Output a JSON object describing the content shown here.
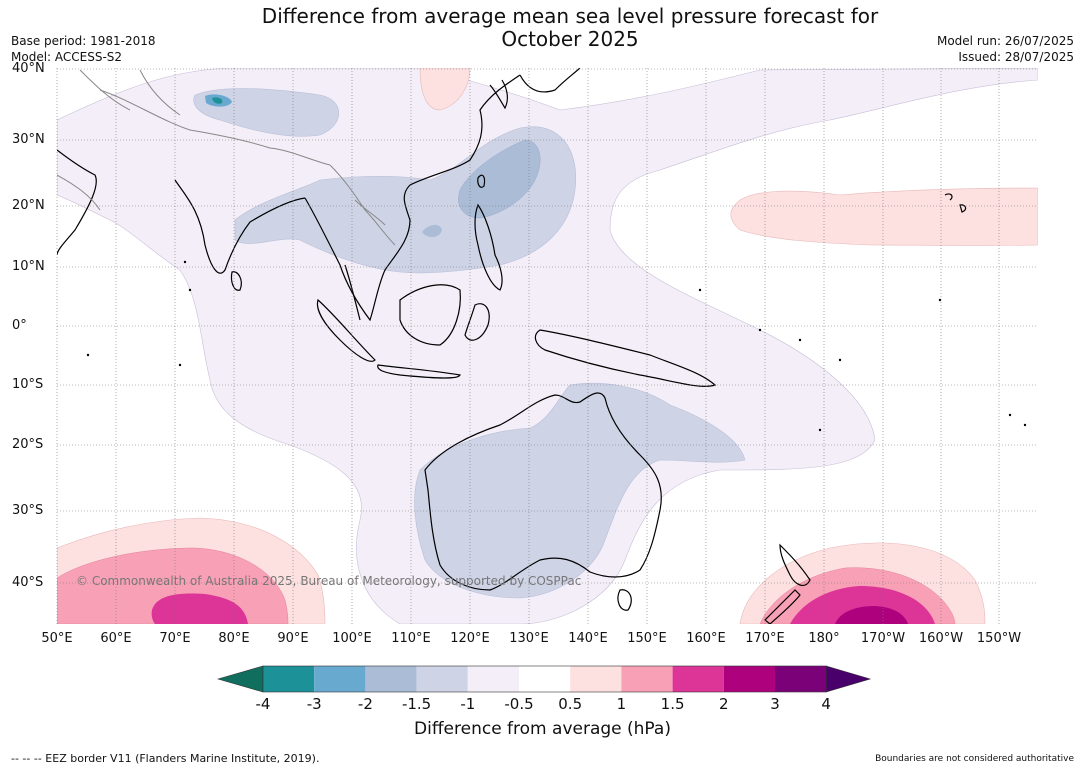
{
  "header": {
    "title": "Difference from average mean sea level pressure forecast for October 2025",
    "base_period": "Base period: 1981-2018",
    "model": "Model: ACCESS-S2",
    "model_run": "Model run: 26/07/2025",
    "issued": "Issued: 28/07/2025"
  },
  "map": {
    "lat_labels": [
      "40°N",
      "30°N",
      "20°N",
      "10°N",
      "0°",
      "10°S",
      "20°S",
      "30°S",
      "40°S"
    ],
    "lon_labels": [
      "50°E",
      "60°E",
      "70°E",
      "80°E",
      "90°E",
      "100°E",
      "110°E",
      "120°E",
      "130°E",
      "140°E",
      "150°E",
      "160°E",
      "170°E",
      "180°",
      "170°W",
      "160°W",
      "150°W"
    ],
    "copyright": "© Commonwealth of Australia 2025, Bureau of Meteorology, supported by COSPPac",
    "anomaly_regions": [
      {
        "name": "west-pacific-low",
        "anomaly_hpa": -1.5,
        "color": "#cfd3e6"
      },
      {
        "name": "philippine-sea-low",
        "anomaly_hpa": -1.5,
        "color": "#aabcd6"
      },
      {
        "name": "australia-low",
        "anomaly_hpa": -1.5,
        "color": "#cfd3e6"
      },
      {
        "name": "tibet-low",
        "anomaly_hpa": -3,
        "color": "#6aa9cf"
      },
      {
        "name": "north-pacific-high",
        "anomaly_hpa": 1,
        "color": "#fde0e0"
      },
      {
        "name": "southern-indian-ocean-high",
        "anomaly_hpa": 2,
        "color": "#dd3497"
      },
      {
        "name": "tasman-high",
        "anomaly_hpa": 3,
        "color": "#ae017e"
      }
    ]
  },
  "colorbar": {
    "title": "Difference from average (hPa)",
    "ticks": [
      "-4",
      "-3",
      "-2",
      "-1.5",
      "-1",
      "-0.5",
      "0.5",
      "1",
      "1.5",
      "2",
      "3",
      "4"
    ],
    "colors": [
      "#0f6e5e",
      "#1d9198",
      "#68a9cf",
      "#aabcd6",
      "#cfd3e6",
      "#f3eef7",
      "#ffffff",
      "#fde0e0",
      "#f8a1b6",
      "#dd3497",
      "#ae017e",
      "#7a0177",
      "#49006a"
    ]
  },
  "footer": {
    "eez_note": "-- -- -- EEZ border V11 (Flanders Marine Institute, 2019).",
    "boundaries_note": "Boundaries are not considered authoritative"
  }
}
